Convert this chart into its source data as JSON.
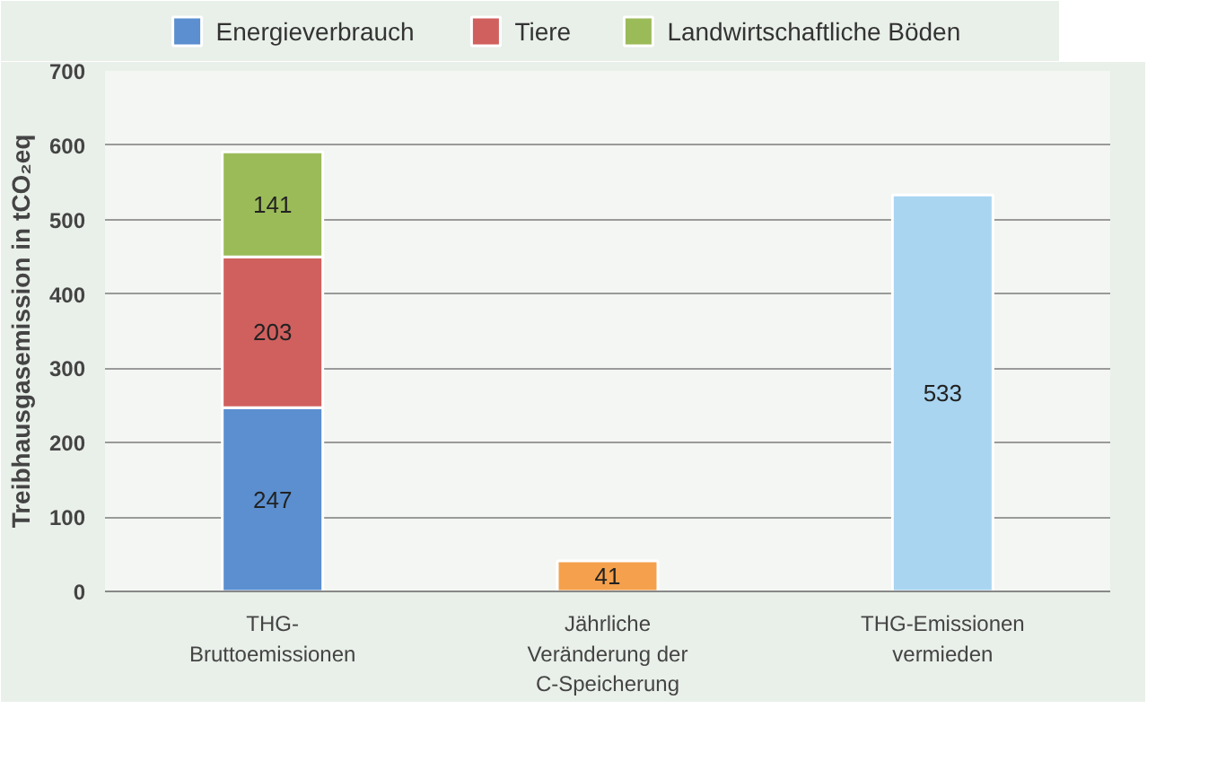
{
  "chart_data": {
    "type": "bar",
    "stacked": true,
    "ylabel": "Treibhausgasemission in tCO₂eq",
    "categories": [
      "THG-\nBruttoemissionen",
      "Jährliche\nVeränderung der\nC-Speicherung",
      "THG-Emissionen\nvermieden"
    ],
    "series": [
      {
        "name": "Energieverbrauch",
        "color": "#5b8fd0",
        "values": [
          247,
          null,
          null
        ]
      },
      {
        "name": "Tiere",
        "color": "#d0605e",
        "values": [
          203,
          null,
          null
        ]
      },
      {
        "name": "Landwirtschaftliche Böden",
        "color": "#9bbb59",
        "values": [
          141,
          null,
          null
        ]
      },
      {
        "colors": [
          null,
          "#f5a04c",
          "#a9d5f0"
        ],
        "values": [
          null,
          41,
          533
        ]
      }
    ],
    "ylim": [
      0,
      700
    ],
    "yticks": [
      0,
      100,
      200,
      300,
      400,
      500,
      600,
      700
    ],
    "grid": "y",
    "legend": "top",
    "data_labels": true
  }
}
